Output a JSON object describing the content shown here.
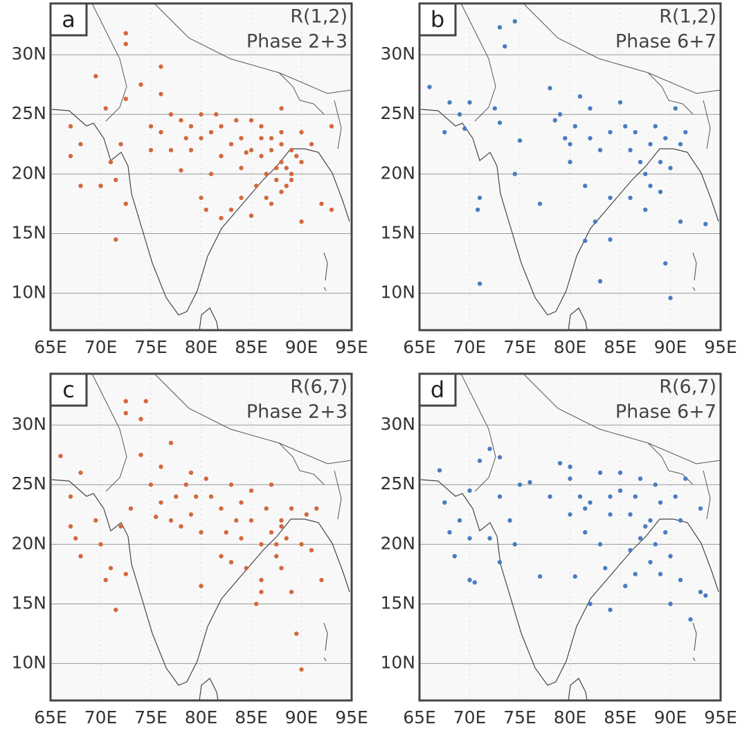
{
  "chart_data": [
    {
      "type": "scatter",
      "label": "a",
      "title": [
        "R(1,2)",
        "Phase 2+3"
      ],
      "color": "#d2693c",
      "x": [
        72.5,
        72.5,
        69.5,
        76,
        74,
        72.5,
        70.5,
        67,
        68,
        67,
        68,
        70,
        71,
        72,
        71.5,
        72.5,
        71.5,
        75,
        76,
        77,
        78,
        79,
        80,
        81,
        82,
        83,
        84,
        85,
        86,
        87,
        88,
        88.5,
        89,
        87.5,
        86.5,
        85.5,
        84,
        83,
        85,
        87,
        88,
        89,
        90,
        90,
        91,
        90,
        92,
        93,
        93,
        88,
        81,
        80,
        82,
        84,
        79,
        77,
        75,
        76,
        78,
        80.5,
        82,
        86,
        87,
        88,
        89.5,
        87.5,
        88.5,
        86.5,
        84.5,
        83.5,
        80,
        78.5,
        81.5,
        85,
        86,
        89,
        88
      ],
      "y": [
        31.8,
        30.9,
        28.2,
        29,
        27.5,
        26.3,
        25.5,
        24,
        22.5,
        21.5,
        19,
        19,
        21,
        22.5,
        19.5,
        17.5,
        14.5,
        24,
        26.7,
        25,
        24.5,
        24,
        25,
        23.5,
        24,
        22.5,
        23,
        24.5,
        23,
        22,
        21,
        20.5,
        22,
        19.5,
        20,
        19,
        18,
        17,
        16.5,
        17.5,
        18.5,
        19.5,
        21,
        23.5,
        22.5,
        16,
        17.5,
        17,
        24,
        25.5,
        20,
        18,
        21.5,
        20.5,
        22,
        22,
        22,
        23.5,
        20.3,
        17,
        16.3,
        21.5,
        23,
        23.5,
        21.5,
        20.5,
        19,
        18,
        21.8,
        24.5,
        23,
        23,
        25,
        22,
        24,
        20,
        22.5
      ],
      "xlim": [
        65,
        95
      ],
      "ylim": [
        6.9,
        34.3
      ],
      "xticks": [
        {
          "value": 65,
          "label": "65E"
        },
        {
          "value": 70,
          "label": "70E"
        },
        {
          "value": 75,
          "label": "75E"
        },
        {
          "value": 80,
          "label": "80E"
        },
        {
          "value": 85,
          "label": "85E"
        },
        {
          "value": 90,
          "label": "90E"
        },
        {
          "value": 95,
          "label": "95E"
        }
      ],
      "yticks": [
        {
          "value": 10,
          "label": "10N"
        },
        {
          "value": 15,
          "label": "15N"
        },
        {
          "value": 20,
          "label": "20N"
        },
        {
          "value": 25,
          "label": "25N"
        },
        {
          "value": 30,
          "label": "30N"
        }
      ],
      "grid": true
    },
    {
      "type": "scatter",
      "label": "b",
      "title": [
        "R(1,2)",
        "Phase 6+7"
      ],
      "color": "#4a7cc1",
      "x": [
        66,
        67.5,
        68,
        69,
        70,
        69.5,
        72.5,
        73,
        73.5,
        74.5,
        73,
        75,
        71,
        70.8,
        71,
        74.5,
        77,
        78,
        79,
        79.5,
        80,
        80.5,
        81,
        82,
        81.5,
        81.5,
        82.5,
        83,
        83,
        84,
        84,
        84,
        85,
        85.5,
        86,
        86.5,
        87,
        87.5,
        87.5,
        88,
        88,
        88.5,
        89,
        89,
        89.5,
        89.5,
        90,
        90,
        90.5,
        91,
        91,
        91.5,
        93.5,
        86,
        82,
        80,
        78.5
      ],
      "y": [
        27.3,
        23.5,
        26,
        25,
        26,
        23.8,
        25.5,
        32.3,
        30.7,
        32.8,
        24.3,
        22.8,
        18,
        17,
        10.8,
        20,
        17.5,
        27.2,
        25,
        23,
        21,
        24,
        26.5,
        23,
        19,
        14.4,
        16,
        22,
        11,
        14.5,
        18,
        23.5,
        26,
        24,
        22,
        23.5,
        21,
        20,
        17,
        19,
        22.5,
        24,
        21,
        18.5,
        23,
        12.5,
        9.6,
        20.5,
        25.5,
        22.5,
        16,
        23.5,
        15.8,
        18,
        25.5,
        22.5,
        24.5
      ],
      "xlim": [
        65,
        95
      ],
      "ylim": [
        6.9,
        34.3
      ],
      "xticks": [
        {
          "value": 65,
          "label": "65E"
        },
        {
          "value": 70,
          "label": "70E"
        },
        {
          "value": 75,
          "label": "75E"
        },
        {
          "value": 80,
          "label": "80E"
        },
        {
          "value": 85,
          "label": "85E"
        },
        {
          "value": 90,
          "label": "90E"
        },
        {
          "value": 95,
          "label": "95E"
        }
      ],
      "yticks": [
        {
          "value": 10,
          "label": "10N"
        },
        {
          "value": 15,
          "label": "15N"
        },
        {
          "value": 20,
          "label": "20N"
        },
        {
          "value": 25,
          "label": "25N"
        },
        {
          "value": 30,
          "label": "30N"
        }
      ],
      "grid": true
    },
    {
      "type": "scatter",
      "label": "c",
      "title": [
        "R(6,7)",
        "Phase 2+3"
      ],
      "color": "#d2693c",
      "x": [
        72.5,
        72.5,
        74,
        74.5,
        66,
        68,
        67,
        67,
        67.5,
        68,
        69.5,
        70,
        70.5,
        71,
        71.5,
        72.5,
        72,
        73,
        74,
        75,
        76,
        76,
        77,
        77.5,
        78.5,
        79,
        80,
        80,
        81,
        82,
        82,
        83,
        83.5,
        84,
        84.5,
        85,
        85.5,
        86,
        86,
        86.5,
        87,
        87.5,
        88,
        88,
        88.5,
        89,
        89,
        89.5,
        90,
        90,
        90.5,
        91,
        92,
        91.5,
        85,
        80.5,
        79,
        78,
        83,
        86,
        87,
        87.5,
        88,
        84,
        82.5,
        79.5,
        77,
        75.5
      ],
      "y": [
        32,
        31,
        30.5,
        32,
        27.4,
        26,
        24,
        21.5,
        20.5,
        19,
        22,
        20,
        17,
        18,
        14.5,
        17.5,
        21.5,
        23,
        27.5,
        25,
        26.5,
        23.5,
        28.5,
        24,
        25,
        22.5,
        21,
        16.5,
        24,
        23,
        19,
        25,
        22,
        20.5,
        18,
        22,
        15,
        17,
        20,
        23,
        21,
        19,
        22,
        18,
        20.5,
        23,
        16,
        12.5,
        9.5,
        20,
        22.5,
        19.5,
        17,
        23,
        24.5,
        25.5,
        26,
        21.5,
        18.5,
        16,
        25,
        20,
        21.5,
        23.5,
        21,
        24,
        22,
        22.3
      ],
      "xlim": [
        65,
        95
      ],
      "ylim": [
        6.9,
        34.3
      ],
      "xticks": [
        {
          "value": 65,
          "label": "65E"
        },
        {
          "value": 70,
          "label": "70E"
        },
        {
          "value": 75,
          "label": "75E"
        },
        {
          "value": 80,
          "label": "80E"
        },
        {
          "value": 85,
          "label": "85E"
        },
        {
          "value": 90,
          "label": "90E"
        },
        {
          "value": 95,
          "label": "95E"
        }
      ],
      "yticks": [
        {
          "value": 10,
          "label": "10N"
        },
        {
          "value": 15,
          "label": "15N"
        },
        {
          "value": 20,
          "label": "20N"
        },
        {
          "value": 25,
          "label": "25N"
        },
        {
          "value": 30,
          "label": "30N"
        }
      ],
      "grid": true
    },
    {
      "type": "scatter",
      "label": "d",
      "title": [
        "R(6,7)",
        "Phase 6+7"
      ],
      "color": "#4a7cc1",
      "x": [
        67,
        67.5,
        68,
        69,
        68.5,
        70,
        70,
        70,
        70.5,
        71,
        72,
        73,
        73,
        74,
        74.5,
        73,
        72,
        75,
        76,
        77,
        78,
        79,
        80,
        80,
        80.5,
        81,
        81.5,
        82,
        82,
        83,
        83,
        83.5,
        84,
        84,
        85,
        85.5,
        86,
        86,
        86.5,
        87,
        87.5,
        88,
        88,
        88.5,
        88.5,
        89,
        89,
        89.5,
        90,
        90,
        90.5,
        91,
        91,
        91.5,
        92,
        93,
        93,
        93.5,
        84,
        81.5,
        80,
        85,
        86.5,
        87
      ],
      "y": [
        26.2,
        23.5,
        21,
        22,
        19,
        24.5,
        20.5,
        17,
        16.8,
        27,
        28,
        27.3,
        24,
        22,
        20,
        18.5,
        20.5,
        25,
        25.2,
        17.3,
        24,
        26.8,
        25.5,
        22.5,
        17.3,
        24,
        21,
        15,
        23.5,
        26,
        20,
        18,
        14.5,
        22.5,
        24.5,
        16.5,
        19.5,
        22.5,
        24,
        20.5,
        21.5,
        18.5,
        22,
        20,
        25,
        23.5,
        17.5,
        21,
        19,
        15,
        24,
        22,
        17,
        25.5,
        13.7,
        23,
        16,
        15.7,
        24,
        23,
        26.5,
        26,
        17.5,
        25.5
      ],
      "xlim": [
        65,
        95
      ],
      "ylim": [
        6.9,
        34.3
      ],
      "xticks": [
        {
          "value": 65,
          "label": "65E"
        },
        {
          "value": 70,
          "label": "70E"
        },
        {
          "value": 75,
          "label": "75E"
        },
        {
          "value": 80,
          "label": "80E"
        },
        {
          "value": 85,
          "label": "85E"
        },
        {
          "value": 90,
          "label": "90E"
        },
        {
          "value": 95,
          "label": "95E"
        }
      ],
      "yticks": [
        {
          "value": 10,
          "label": "10N"
        },
        {
          "value": 15,
          "label": "15N"
        },
        {
          "value": 20,
          "label": "20N"
        },
        {
          "value": 25,
          "label": "25N"
        },
        {
          "value": 30,
          "label": "30N"
        }
      ],
      "grid": true
    }
  ]
}
